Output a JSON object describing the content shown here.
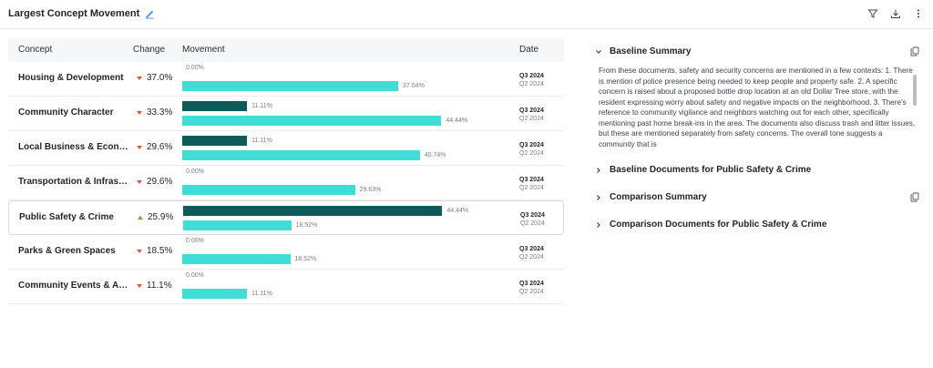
{
  "header": {
    "title": "Largest Concept Movement"
  },
  "table": {
    "columns": {
      "concept": "Concept",
      "change": "Change",
      "movement": "Movement",
      "date": "Date"
    },
    "max_percent": 50,
    "rows": [
      {
        "concept": "Housing & Development",
        "direction": "down",
        "change": "37.0%",
        "baseline_pct": 0.0,
        "baseline_label": "0.00%",
        "comparison_pct": 37.04,
        "comparison_label": "37.04%",
        "date_primary": "Q3 2024",
        "date_secondary": "Q2 2024"
      },
      {
        "concept": "Community Character",
        "direction": "down",
        "change": "33.3%",
        "baseline_pct": 11.11,
        "baseline_label": "11.11%",
        "comparison_pct": 44.44,
        "comparison_label": "44.44%",
        "date_primary": "Q3 2024",
        "date_secondary": "Q2 2024"
      },
      {
        "concept": "Local Business & Economy",
        "direction": "down",
        "change": "29.6%",
        "baseline_pct": 11.11,
        "baseline_label": "11.11%",
        "comparison_pct": 40.74,
        "comparison_label": "40.74%",
        "date_primary": "Q3 2024",
        "date_secondary": "Q2 2024"
      },
      {
        "concept": "Transportation & Infrastructure",
        "direction": "down",
        "change": "29.6%",
        "baseline_pct": 0.0,
        "baseline_label": "0.00%",
        "comparison_pct": 29.63,
        "comparison_label": "29.63%",
        "date_primary": "Q3 2024",
        "date_secondary": "Q2 2024"
      },
      {
        "concept": "Public Safety & Crime",
        "direction": "up",
        "change": "25.9%",
        "baseline_pct": 44.44,
        "baseline_label": "44.44%",
        "comparison_pct": 18.52,
        "comparison_label": "18.52%",
        "date_primary": "Q3 2024",
        "date_secondary": "Q2 2024",
        "selected": true
      },
      {
        "concept": "Parks & Green Spaces",
        "direction": "down",
        "change": "18.5%",
        "baseline_pct": 0.0,
        "baseline_label": "0.00%",
        "comparison_pct": 18.52,
        "comparison_label": "18.52%",
        "date_primary": "Q3 2024",
        "date_secondary": "Q2 2024"
      },
      {
        "concept": "Community Events & Activities",
        "direction": "down",
        "change": "11.1%",
        "baseline_pct": 0.0,
        "baseline_label": "0.00%",
        "comparison_pct": 11.11,
        "comparison_label": "11.11%",
        "date_primary": "Q3 2024",
        "date_secondary": "Q2 2024"
      }
    ]
  },
  "panel": {
    "baseline_summary_title": "Baseline Summary",
    "baseline_summary_text": "From these documents, safety and security concerns are mentioned in a few contexts: 1. There is mention of police presence being needed to keep people and property safe. 2. A specific concern is raised about a proposed bottle drop location at an old Dollar Tree store, with the resident expressing worry about safety and negative impacts on the neighborhood. 3. There's reference to community vigilance and neighbors watching out for each other, specifically mentioning past home break-ins in the area. The documents also discuss trash and litter issues, but these are mentioned separately from safety concerns. The overall tone suggests a community that is",
    "baseline_documents_title": "Baseline Documents for Public Safety & Crime",
    "comparison_summary_title": "Comparison Summary",
    "comparison_documents_title": "Comparison Documents for Public Safety & Crime"
  },
  "colors": {
    "baseline_bar": "#0c5b58",
    "comparison_bar": "#40dcd6",
    "down_arrow": "#e5533d",
    "up_arrow": "#7aa52a",
    "edit_icon": "#3b82f6"
  },
  "icons": {
    "edit": "pencil-icon",
    "filter": "filter-icon",
    "download": "download-icon",
    "more": "more-vertical-icon",
    "copy": "copy-icon",
    "expand": "chevron-icon"
  }
}
